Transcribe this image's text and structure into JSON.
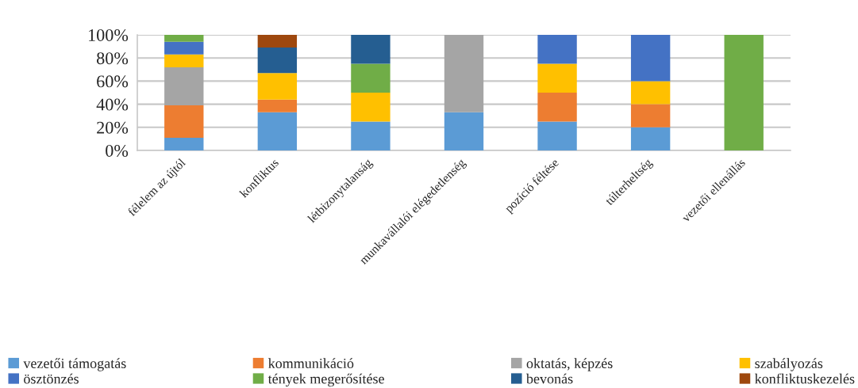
{
  "chart_data": {
    "type": "bar",
    "stacked": true,
    "categories": [
      "félelem az újtól",
      "konfliktus",
      "létbizonytalanság",
      "munkavállalói elégedetlenség",
      "pozíció féltése",
      "túlterheltség",
      "vezetői ellenállás"
    ],
    "series": [
      {
        "name": "vezetői támogatás",
        "color": "#5b9bd5",
        "values": [
          11,
          33,
          25,
          33,
          25,
          20,
          null
        ]
      },
      {
        "name": "kommunikáció",
        "color": "#ed7d31",
        "values": [
          28,
          11,
          null,
          null,
          25,
          20,
          null
        ]
      },
      {
        "name": "oktatás, képzés",
        "color": "#a5a5a5",
        "values": [
          33,
          null,
          null,
          67,
          null,
          null,
          null
        ]
      },
      {
        "name": "szabályozás",
        "color": "#ffc000",
        "values": [
          11,
          23,
          25,
          null,
          25,
          20,
          null
        ]
      },
      {
        "name": "ösztönzés",
        "color": "#4472c4",
        "values": [
          11,
          null,
          null,
          null,
          25,
          40,
          null
        ]
      },
      {
        "name": "tények megerősítése",
        "color": "#70ad47",
        "values": [
          6,
          null,
          25,
          null,
          null,
          null,
          100
        ]
      },
      {
        "name": "bevonás",
        "color": "#255e91",
        "values": [
          null,
          22,
          25,
          null,
          null,
          null,
          null
        ]
      },
      {
        "name": "konfliktuskezelés",
        "color": "#9e480e",
        "values": [
          null,
          11,
          null,
          null,
          null,
          null,
          null
        ]
      }
    ],
    "ylim": [
      0,
      100
    ],
    "yticks": [
      {
        "value": 0,
        "label": "0%"
      },
      {
        "value": 20,
        "label": "20%"
      },
      {
        "value": 40,
        "label": "40%"
      },
      {
        "value": 60,
        "label": "60%"
      },
      {
        "value": 80,
        "label": "80%"
      },
      {
        "value": 100,
        "label": "100%"
      }
    ],
    "grid": "y",
    "legend": "bottom"
  }
}
